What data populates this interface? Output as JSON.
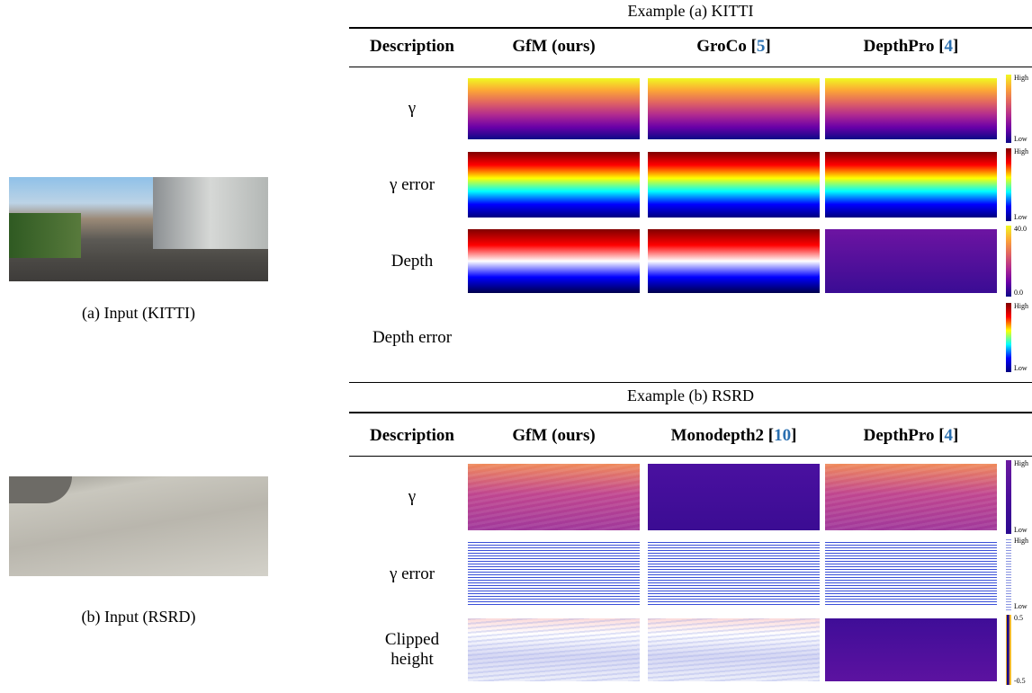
{
  "inputs": [
    {
      "caption": "(a) Input (KITTI)"
    },
    {
      "caption": "(b) Input (RSRD)"
    }
  ],
  "examples": [
    {
      "title": "Example (a) KITTI",
      "headers": [
        [
          "Description"
        ],
        [
          "GfM (ours)"
        ],
        [
          "GroCo [",
          "5",
          "]"
        ],
        [
          "DepthPro [",
          "4",
          "]"
        ]
      ],
      "rows": [
        {
          "label": "γ",
          "colorbar": [
            "High",
            "Low"
          ]
        },
        {
          "label": "γ error",
          "colorbar": [
            "High",
            "Low"
          ]
        },
        {
          "label": "Depth",
          "colorbar": [
            "40.0",
            "0.0"
          ]
        },
        {
          "label": "Depth error",
          "colorbar": [
            "High",
            "Low"
          ]
        }
      ]
    },
    {
      "title": "Example (b) RSRD",
      "headers": [
        [
          "Description"
        ],
        [
          "GfM (ours)"
        ],
        [
          "Monodepth2 [",
          "10",
          "]"
        ],
        [
          "DepthPro [",
          "4",
          "]"
        ]
      ],
      "rows": [
        {
          "label": "γ",
          "colorbar": [
            "High",
            "Low"
          ]
        },
        {
          "label": "γ error",
          "colorbar": [
            "High",
            "Low"
          ]
        },
        {
          "label": "Clipped height",
          "colorbar": [
            "0.5",
            "-0.5"
          ]
        }
      ]
    }
  ]
}
